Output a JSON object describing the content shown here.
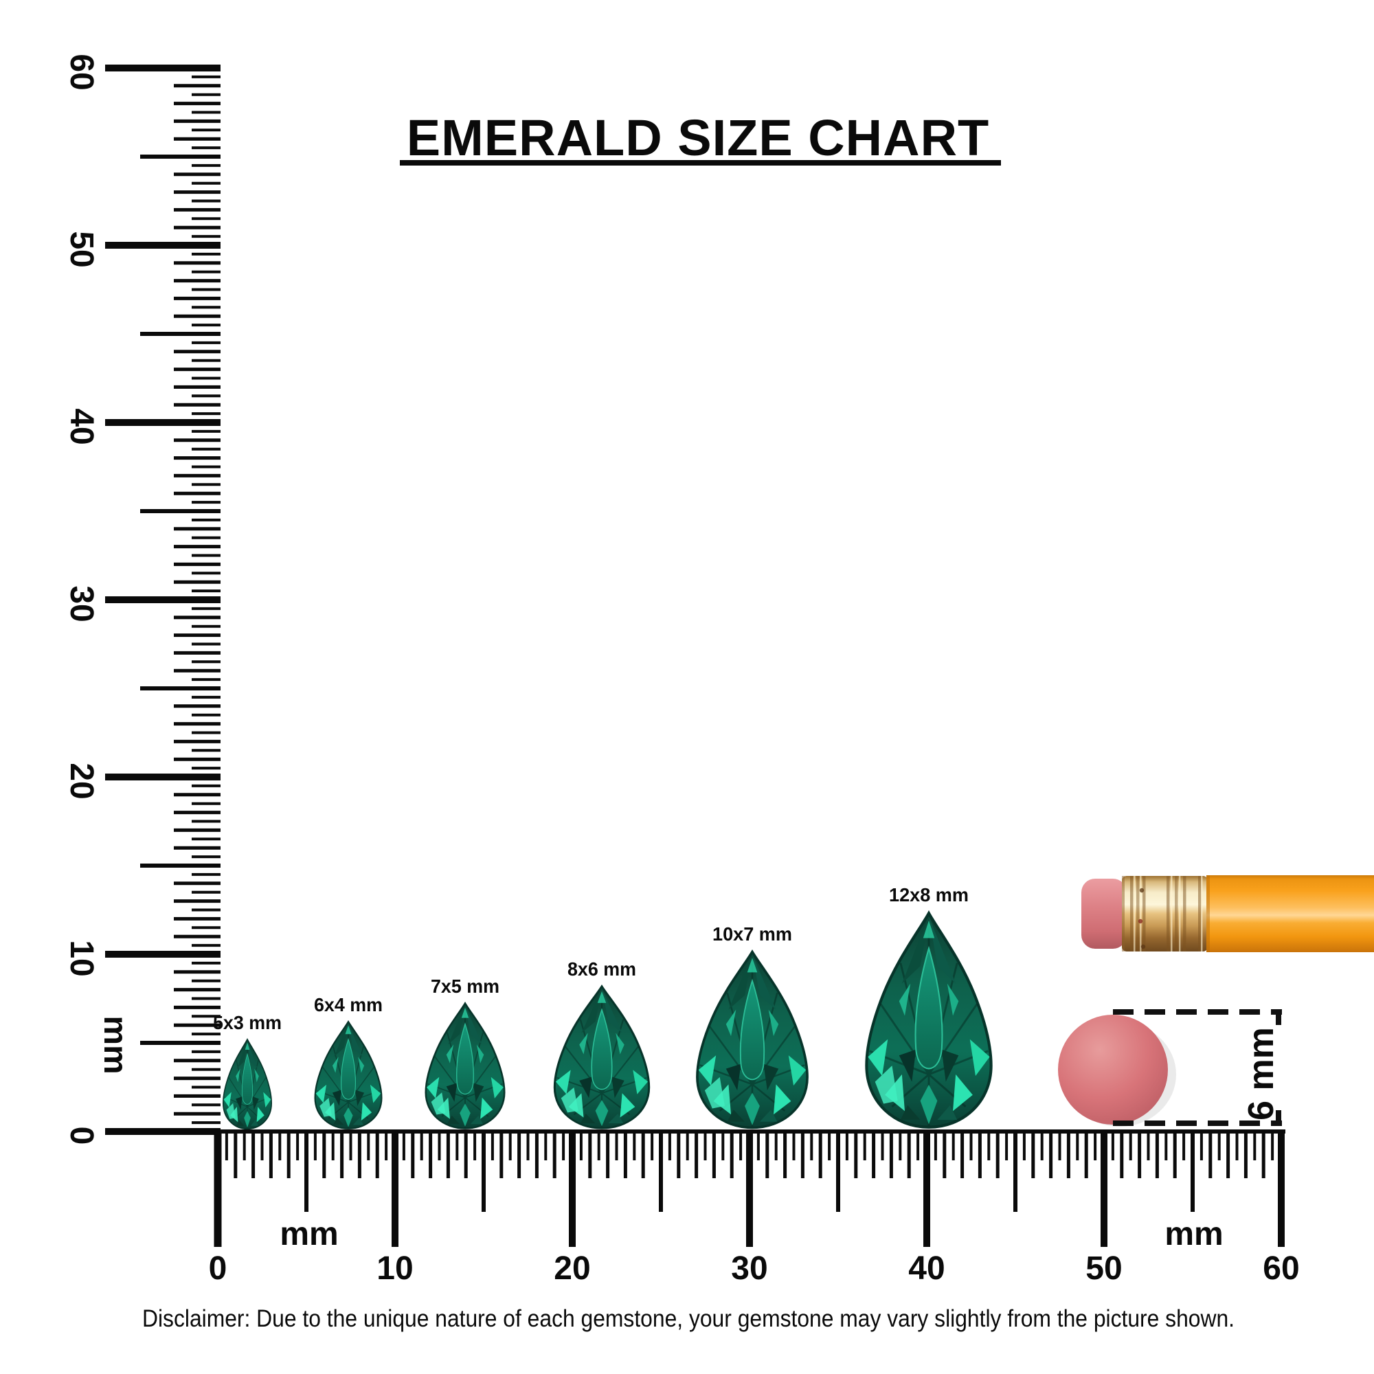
{
  "title": "EMERALD SIZE CHART",
  "rulers": {
    "vertical": {
      "unit": "mm",
      "labels": [
        "0",
        "10",
        "20",
        "30",
        "40",
        "50",
        "60"
      ]
    },
    "horizontal": {
      "unit_left": "mm",
      "unit_right": "mm",
      "labels": [
        "0",
        "10",
        "20",
        "30",
        "40",
        "50",
        "60"
      ]
    }
  },
  "gems": [
    {
      "label": "5x3 mm",
      "height_mm": 5,
      "width_mm": 3,
      "shape": "pear"
    },
    {
      "label": "6x4 mm",
      "height_mm": 6,
      "width_mm": 4,
      "shape": "pear"
    },
    {
      "label": "7x5 mm",
      "height_mm": 7,
      "width_mm": 5,
      "shape": "pear"
    },
    {
      "label": "8x6 mm",
      "height_mm": 8,
      "width_mm": 6,
      "shape": "pear"
    },
    {
      "label": "10x7 mm",
      "height_mm": 10,
      "width_mm": 7,
      "shape": "pear"
    },
    {
      "label": "12x8 mm",
      "height_mm": 12,
      "width_mm": 8,
      "shape": "pear"
    }
  ],
  "reference": {
    "circle_label": "6 mm",
    "circle_diameter_mm": 6,
    "pencil": "pencil-eraser-end"
  },
  "disclaimer": "Disclaimer: Due to the unique nature of each gemstone, your gemstone may vary slightly from the picture shown.",
  "colors": {
    "ink": "#0a0a0a",
    "emerald_dark": "#0d4033",
    "emerald_mid": "#0d6f57",
    "emerald_bright": "#2de8b0",
    "pencil_orange": "#f9a11c",
    "ferrule_gold": "#f7ecc9",
    "eraser_pink": "#dd8186",
    "reference_circle": "#d87479",
    "background": "#ffffff"
  }
}
